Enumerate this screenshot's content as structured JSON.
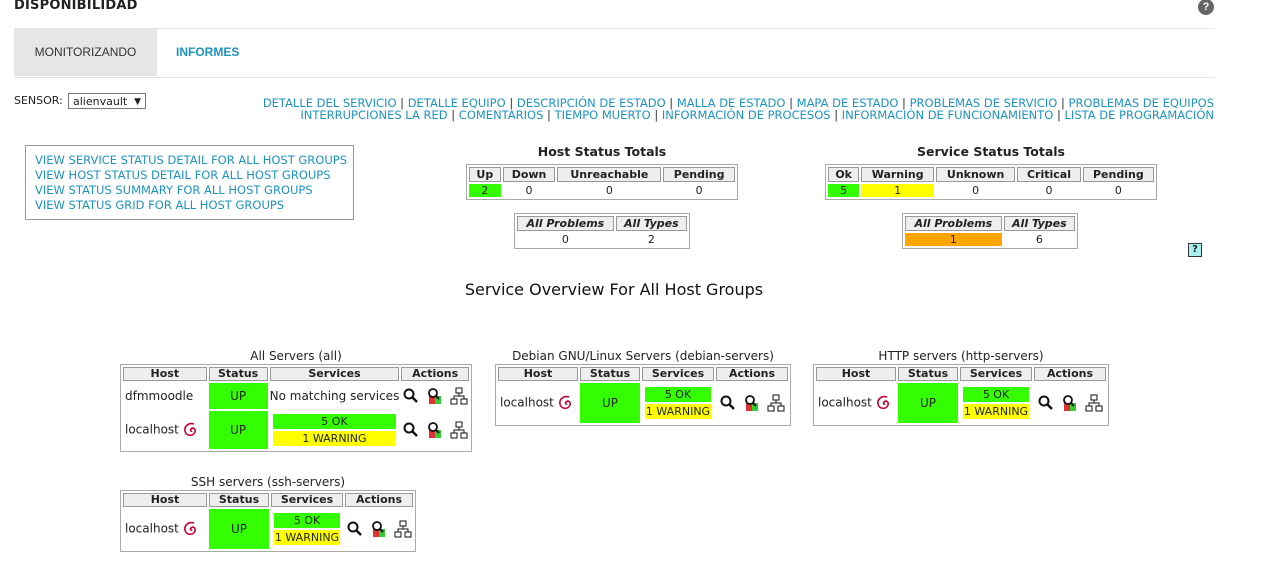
{
  "page": {
    "title": "DISPONIBILIDAD",
    "help": "?"
  },
  "tabs": [
    {
      "label": "MONITORIZANDO",
      "active": true
    },
    {
      "label": "INFORMES",
      "active": false
    }
  ],
  "sensor": {
    "label": "SENSOR:",
    "value": "alienvault"
  },
  "nav_links_row1": [
    "DETALLE DEL SERVICIO",
    "DETALLE EQUIPO",
    "DESCRIPCIÓN DE ESTADO",
    "MALLA DE ESTADO",
    "MAPA DE ESTADO",
    "PROBLEMAS DE SERVICIO",
    "PROBLEMAS DE EQUIPOS"
  ],
  "nav_links_row2": [
    "INTERRUPCIONES LA RED",
    "COMENTARIOS",
    "TIEMPO MUERTO",
    "INFORMACIÓN DE PROCESOS",
    "INFORMACIÓN DE FUNCIONAMIENTO",
    "LISTA DE PROGRAMACIÓN"
  ],
  "quick_links": [
    "VIEW SERVICE STATUS DETAIL FOR ALL HOST GROUPS",
    "VIEW HOST STATUS DETAIL FOR ALL HOST GROUPS",
    "VIEW STATUS SUMMARY FOR ALL HOST GROUPS",
    "VIEW STATUS GRID FOR ALL HOST GROUPS"
  ],
  "host_totals": {
    "title": "Host Status Totals",
    "headers": [
      "Up",
      "Down",
      "Unreachable",
      "Pending"
    ],
    "values": [
      "2",
      "0",
      "0",
      "0"
    ],
    "summary_headers": [
      "All Problems",
      "All Types"
    ],
    "summary_values": [
      "0",
      "2"
    ]
  },
  "service_totals": {
    "title": "Service Status Totals",
    "headers": [
      "Ok",
      "Warning",
      "Unknown",
      "Critical",
      "Pending"
    ],
    "values": [
      "5",
      "1",
      "0",
      "0",
      "0"
    ],
    "summary_headers": [
      "All Problems",
      "All Types"
    ],
    "summary_values": [
      "1",
      "6"
    ]
  },
  "status_colors": {
    "ok": "#33ff00",
    "warning": "#ffff00",
    "problem": "#ffa500",
    "link": "#1d93c1"
  },
  "overview_title": "Service Overview For All Host Groups",
  "table_headers": [
    "Host",
    "Status",
    "Services",
    "Actions"
  ],
  "groups": [
    {
      "title": "All Servers (all)",
      "rows": [
        {
          "host": "dfmmoodle",
          "status": "UP",
          "services": "No matching services"
        },
        {
          "host": "localhost",
          "status": "UP",
          "ok": "5 OK",
          "warn": "1 WARNING"
        }
      ]
    },
    {
      "title": "Debian GNU/Linux Servers (debian-servers)",
      "rows": [
        {
          "host": "localhost",
          "status": "UP",
          "ok": "5 OK",
          "warn": "1 WARNING"
        }
      ]
    },
    {
      "title": "HTTP servers (http-servers)",
      "rows": [
        {
          "host": "localhost",
          "status": "UP",
          "ok": "5 OK",
          "warn": "1 WARNING"
        }
      ]
    },
    {
      "title": "SSH servers (ssh-servers)",
      "rows": [
        {
          "host": "localhost",
          "status": "UP",
          "ok": "5 OK",
          "warn": "1 WARNING"
        }
      ]
    }
  ],
  "icons": {
    "debian": "debian-swirl-icon",
    "details": "magnifier-icon",
    "service_details": "service-detail-icon",
    "map": "status-map-icon"
  }
}
